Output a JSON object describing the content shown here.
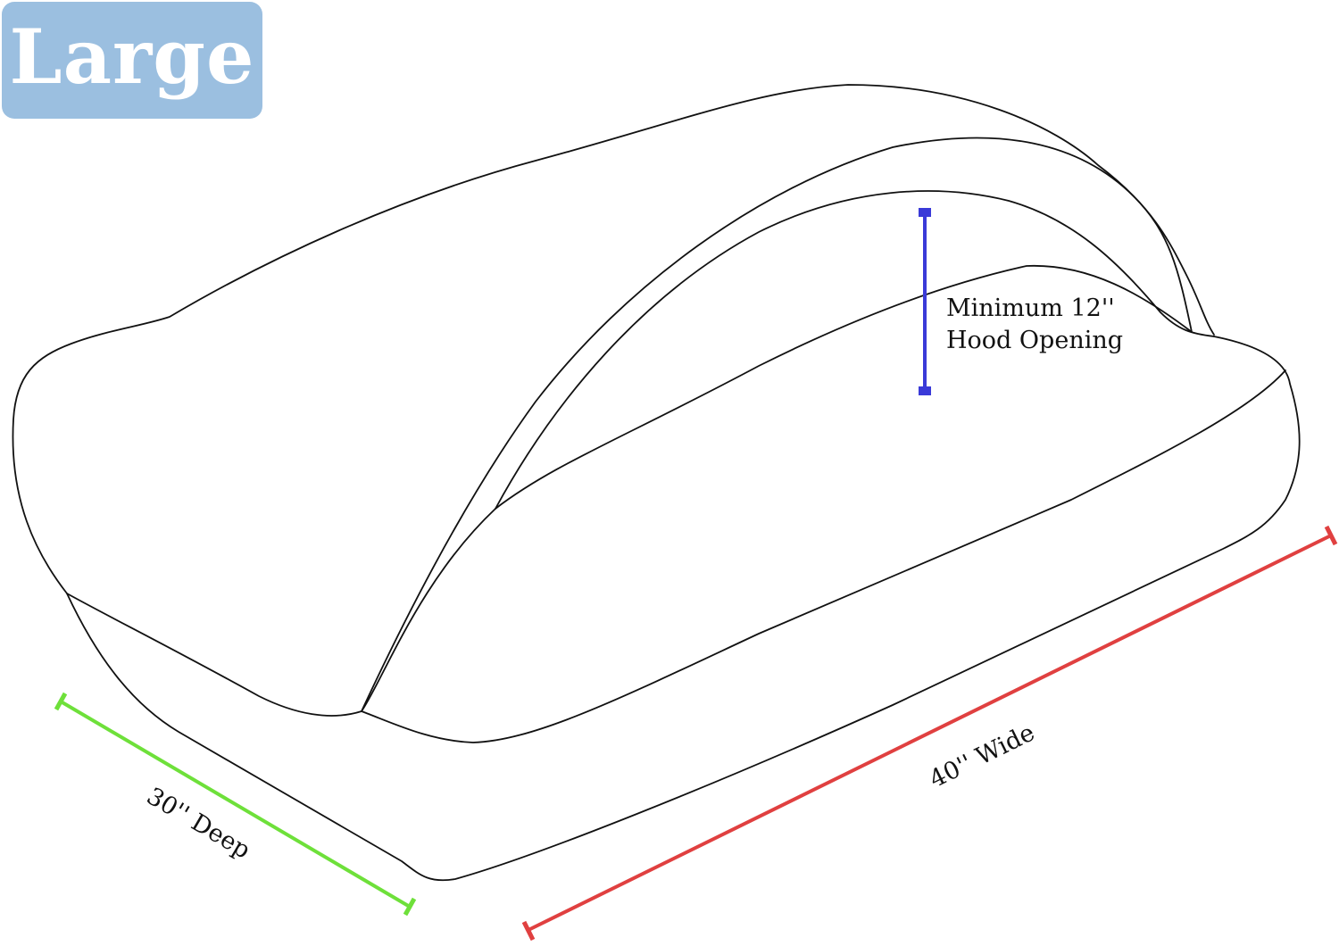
{
  "size_badge": {
    "label": "Large",
    "color": "#9bbfe0"
  },
  "dimensions": {
    "hood": {
      "label_line1": "Minimum 12''",
      "label_line2": "Hood Opening",
      "color": "#3a3ad8"
    },
    "depth": {
      "label": "30'' Deep",
      "color": "#6ee03a"
    },
    "width": {
      "label": "40'' Wide",
      "color": "#e04040"
    }
  }
}
